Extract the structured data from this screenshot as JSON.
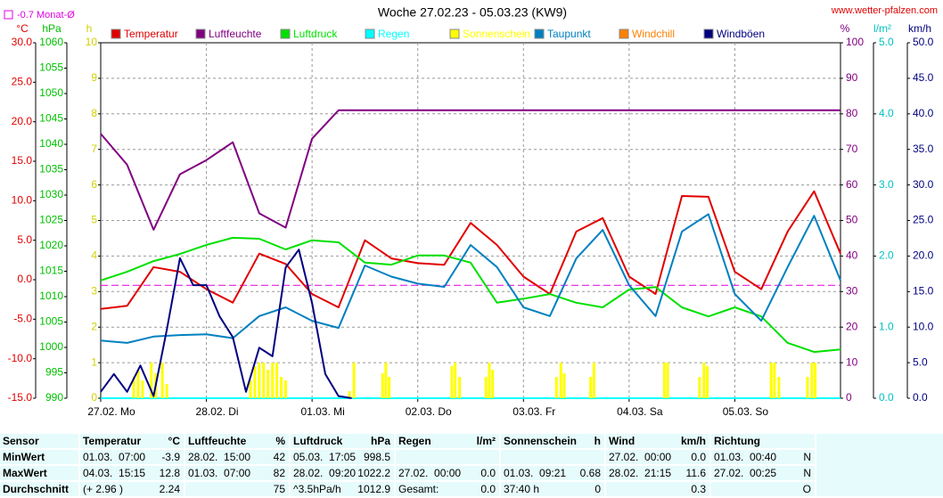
{
  "chart_data": {
    "type": "line",
    "title": "Woche 27.02.23 - 05.03.23 (KW9)",
    "source": "www.wetter-pfalzen.com",
    "reference": {
      "text": "-0.7 Monat-Ø",
      "value": -0.7,
      "color": "#e000e0",
      "axis": 0
    },
    "grid": true,
    "x": [
      0,
      6,
      12,
      18,
      24,
      30,
      36,
      42,
      48,
      54,
      60,
      66,
      72,
      78,
      84,
      90,
      96,
      102,
      108,
      114,
      120,
      126,
      132,
      138,
      144,
      150,
      156,
      162,
      168
    ],
    "xlim": [
      0,
      168
    ],
    "xticks": [
      {
        "value": 0,
        "label": "27.02. Mo"
      },
      {
        "value": 24,
        "label": "28.02. Di"
      },
      {
        "value": 48,
        "label": "01.03. Mi"
      },
      {
        "value": 72,
        "label": "02.03. Do"
      },
      {
        "value": 96,
        "label": "03.03. Fr"
      },
      {
        "value": 120,
        "label": "04.03. Sa"
      },
      {
        "value": 144,
        "label": "05.03. So"
      }
    ],
    "axes": [
      {
        "unit": "°C",
        "side": "left",
        "color": "#e00000",
        "lim": [
          -15,
          30
        ],
        "ticks": [
          {
            "value": -15,
            "label": "-15.0"
          },
          {
            "value": -10,
            "label": "-10.0"
          },
          {
            "value": -5,
            "label": "-5.0"
          },
          {
            "value": 0,
            "label": "0.0"
          },
          {
            "value": 5,
            "label": "5.0"
          },
          {
            "value": 10,
            "label": "10.0"
          },
          {
            "value": 15,
            "label": "15.0"
          },
          {
            "value": 20,
            "label": "20.0"
          },
          {
            "value": 25,
            "label": "25.0"
          },
          {
            "value": 30,
            "label": "30.0"
          }
        ]
      },
      {
        "unit": "hPa",
        "side": "left",
        "color": "#00c000",
        "lim": [
          990,
          1060
        ],
        "ticks": [
          990,
          995,
          1000,
          1005,
          1010,
          1015,
          1020,
          1025,
          1030,
          1035,
          1040,
          1045,
          1050,
          1055,
          1060
        ]
      },
      {
        "unit": "h",
        "side": "left",
        "color": "#d0d000",
        "lim": [
          0,
          10
        ],
        "ticks": [
          0,
          1,
          2,
          3,
          4,
          5,
          6,
          7,
          8,
          9,
          10
        ],
        "grid": true
      },
      {
        "unit": "%",
        "side": "right",
        "color": "#800080",
        "lim": [
          0,
          100
        ],
        "ticks": [
          0,
          10,
          20,
          30,
          40,
          50,
          60,
          70,
          80,
          90,
          100
        ]
      },
      {
        "unit": "l/m²",
        "side": "right",
        "color": "#00c0c0",
        "lim": [
          0,
          5
        ],
        "ticks": [
          {
            "value": 0,
            "label": "0.0"
          },
          {
            "value": 1,
            "label": "1.0"
          },
          {
            "value": 2,
            "label": "2.0"
          },
          {
            "value": 3,
            "label": "3.0"
          },
          {
            "value": 4,
            "label": "4.0"
          },
          {
            "value": 5,
            "label": "5.0"
          }
        ]
      },
      {
        "unit": "km/h",
        "side": "right",
        "color": "#000080",
        "lim": [
          0,
          50
        ],
        "ticks": [
          {
            "value": 0,
            "label": "0.0"
          },
          {
            "value": 5,
            "label": "5.0"
          },
          {
            "value": 10,
            "label": "10.0"
          },
          {
            "value": 15,
            "label": "15.0"
          },
          {
            "value": 20,
            "label": "20.0"
          },
          {
            "value": 25,
            "label": "25.0"
          },
          {
            "value": 30,
            "label": "30.0"
          },
          {
            "value": 35,
            "label": "35.0"
          },
          {
            "value": 40,
            "label": "40.0"
          },
          {
            "value": 45,
            "label": "45.0"
          },
          {
            "value": 50,
            "label": "50.0"
          }
        ]
      }
    ],
    "series": [
      {
        "name": "Temperatur",
        "color": "#e00000",
        "axis": 0,
        "values": [
          -3.7,
          -3.3,
          1.6,
          1.0,
          -1.2,
          -2.9,
          3.3,
          2.0,
          -1.8,
          -3.5,
          5.0,
          2.7,
          2.1,
          1.9,
          7.2,
          4.4,
          0.4,
          -1.8,
          6.1,
          7.8,
          0.4,
          -1.8,
          10.6,
          10.5,
          1.0,
          -1.2,
          6.1,
          11.2,
          3.3
        ]
      },
      {
        "name": "Luftfeuchte",
        "color": "#800080",
        "axis": 3,
        "values": [
          74.4,
          65.7,
          47.4,
          63,
          67,
          72,
          52,
          48,
          73,
          81,
          81,
          81,
          81,
          81,
          81,
          81,
          81,
          81,
          81,
          81,
          81,
          81,
          81,
          81,
          81,
          81,
          81,
          81,
          81
        ]
      },
      {
        "name": "Luftdruck",
        "color": "#00e000",
        "axis": 1,
        "values": [
          1013.2,
          1014.9,
          1017.0,
          1018.4,
          1020.2,
          1021.6,
          1021.4,
          1019.3,
          1021.1,
          1020.7,
          1016.7,
          1016.3,
          1018.1,
          1018.1,
          1016.7,
          1008.8,
          1009.6,
          1010.5,
          1008.8,
          1007.9,
          1011.4,
          1011.9,
          1007.9,
          1006.1,
          1007.9,
          1006.1,
          1000.9,
          999.1,
          999.6
        ]
      },
      {
        "name": "Regen",
        "color": "#00ffff",
        "axis": 4,
        "x": [
          0,
          168
        ],
        "values": [
          0,
          0
        ]
      },
      {
        "name": "Sonnenschein",
        "color": "#ffff00",
        "axis": 2,
        "kind": "bar",
        "x": [
          7.5,
          8.5,
          9.5,
          11.5,
          12.5,
          14,
          15,
          34,
          35,
          36,
          37,
          38,
          39,
          40,
          41,
          42,
          56.5,
          57.5,
          64,
          64.75,
          65.5,
          79.75,
          80.5,
          81.5,
          87.5,
          88.25,
          89,
          103.5,
          104.5,
          105.25,
          111.25,
          112,
          128,
          128.75,
          136,
          137,
          137.75,
          152.25,
          153,
          154,
          160.5,
          161.5,
          162.25
        ],
        "values": [
          0.6,
          0.8,
          0.5,
          1.0,
          0.7,
          1.0,
          0.4,
          0.5,
          0.9,
          1.0,
          1.0,
          0.8,
          1.0,
          1.0,
          0.6,
          0.5,
          0.2,
          1.0,
          0.7,
          1.0,
          0.6,
          0.9,
          1.0,
          0.6,
          0.6,
          1.0,
          0.8,
          0.6,
          1.0,
          0.7,
          0.6,
          1.0,
          1.0,
          1.0,
          0.6,
          1.0,
          0.9,
          1.0,
          1.0,
          0.6,
          0.6,
          1.0,
          1.0
        ]
      },
      {
        "name": "Taupunkt",
        "color": "#0080c0",
        "axis": 0,
        "values": [
          -7.7,
          -8.0,
          -7.2,
          -7.0,
          -6.9,
          -7.4,
          -4.6,
          -3.5,
          -5.2,
          -6.1,
          1.8,
          0.4,
          -0.5,
          -0.9,
          4.4,
          1.6,
          -3.5,
          -4.6,
          2.7,
          6.3,
          -0.7,
          -4.6,
          6.1,
          8.3,
          -1.8,
          -5.2,
          1.6,
          8.1,
          -0.1
        ]
      },
      {
        "name": "Windchill",
        "color": "#ff8000",
        "axis": 0
      },
      {
        "name": "Windböen",
        "color": "#000080",
        "axis": 5,
        "x": [
          0,
          3,
          6,
          9,
          12,
          15,
          18,
          21,
          24,
          27,
          30,
          33,
          36,
          39,
          42,
          45,
          48,
          51,
          54,
          57
        ],
        "values": [
          0.9,
          3.4,
          0.9,
          4.6,
          0.3,
          9.6,
          19.7,
          15.9,
          15.9,
          11.5,
          8.6,
          0.9,
          7.1,
          5.9,
          18.4,
          20.9,
          13.4,
          3.4,
          0.3,
          0
        ]
      }
    ]
  },
  "table": {
    "columns": [
      {
        "name": "Sensor"
      },
      {
        "name": "Temperatur",
        "unit": "°C"
      },
      {
        "name": "Luftfeuchte",
        "unit": "%"
      },
      {
        "name": "Luftdruck",
        "unit": "hPa"
      },
      {
        "name": "Regen",
        "unit": "l/m²"
      },
      {
        "name": "Sonnenschein",
        "unit": "h"
      },
      {
        "name": "Wind",
        "unit": "km/h"
      },
      {
        "name": "Richtung"
      }
    ],
    "rows": [
      {
        "label": "MinWert",
        "cells": [
          {
            "time": "01.03.  07:00",
            "value": "-3.9"
          },
          {
            "time": "28.02.  15:00",
            "value": "42"
          },
          {
            "time": "05.03.  17:05",
            "value": "998.5"
          },
          {},
          {},
          {
            "time": "27.02.  00:00",
            "value": "0.0"
          },
          {
            "time": "01.03.  00:40",
            "value": "N"
          }
        ]
      },
      {
        "label": "MaxWert",
        "cells": [
          {
            "time": "04.03.  15:15",
            "value": "12.8"
          },
          {
            "time": "01.03.  07:00",
            "value": "82"
          },
          {
            "time": "28.02.  09:20",
            "value": "1022.2"
          },
          {
            "time": "27.02.  00:00",
            "value": "0.0"
          },
          {
            "time": "01.03.  09:21",
            "value": "0.68"
          },
          {
            "time": "28.02.  21:15",
            "value": "11.6"
          },
          {
            "time": "27.02.  00:25",
            "value": "N"
          }
        ]
      },
      {
        "label": "Durchschnitt",
        "cells": [
          {
            "time": "(+ 2.96 )",
            "value": "2.24"
          },
          {
            "value": "75"
          },
          {
            "time": "^3.5hPa/h",
            "value": "1012.9"
          },
          {
            "time": "Gesamt:",
            "value": "0.0"
          },
          {
            "time": "37:40 h",
            "value": "0"
          },
          {
            "value": "0.3"
          },
          {
            "value": "O"
          }
        ]
      }
    ]
  }
}
